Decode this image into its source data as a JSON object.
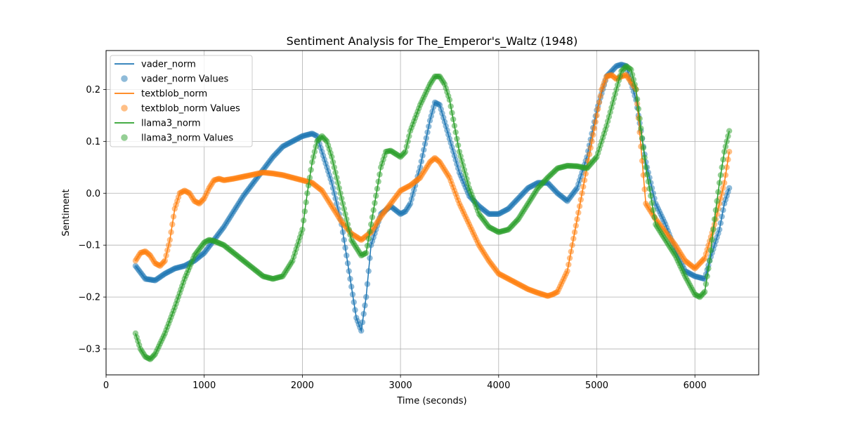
{
  "chart_data": {
    "type": "line",
    "title": "Sentiment Analysis for The_Emperor's_Waltz (1948)",
    "xlabel": "Time (seconds)",
    "ylabel": "Sentiment",
    "xlim": [
      0,
      6650
    ],
    "ylim": [
      -0.35,
      0.275
    ],
    "xticks": [
      0,
      1000,
      2000,
      3000,
      4000,
      5000,
      6000
    ],
    "yticks": [
      -0.3,
      -0.2,
      -0.1,
      0.0,
      0.1,
      0.2
    ],
    "xtick_labels": [
      "0",
      "1000",
      "2000",
      "3000",
      "4000",
      "5000",
      "6000"
    ],
    "ytick_labels": [
      "−0.3",
      "−0.2",
      "−0.1",
      "0.0",
      "0.1",
      "0.2"
    ],
    "grid": true,
    "legend_position": "upper-left",
    "legend": [
      "vader_norm",
      "vader_norm Values",
      "textblob_norm",
      "textblob_norm Values",
      "llama3_norm",
      "llama3_norm Values"
    ],
    "series": [
      {
        "name": "vader_norm",
        "color": "#1f77b4",
        "x": [
          300,
          400,
          500,
          600,
          700,
          800,
          900,
          1000,
          1100,
          1200,
          1300,
          1400,
          1500,
          1600,
          1700,
          1800,
          1900,
          2000,
          2100,
          2150,
          2200,
          2300,
          2400,
          2500,
          2550,
          2600,
          2650,
          2700,
          2800,
          2900,
          3000,
          3050,
          3100,
          3200,
          3300,
          3350,
          3400,
          3500,
          3600,
          3700,
          3800,
          3900,
          4000,
          4100,
          4200,
          4300,
          4400,
          4500,
          4600,
          4700,
          4800,
          4900,
          5000,
          5100,
          5200,
          5250,
          5300,
          5400,
          5500,
          5600,
          5700,
          5800,
          5900,
          6000,
          6100,
          6150,
          6200,
          6250,
          6300,
          6350
        ],
        "y": [
          -0.14,
          -0.165,
          -0.168,
          -0.155,
          -0.145,
          -0.14,
          -0.13,
          -0.115,
          -0.09,
          -0.065,
          -0.035,
          -0.005,
          0.02,
          0.045,
          0.07,
          0.09,
          0.1,
          0.11,
          0.115,
          0.11,
          0.08,
          0.02,
          -0.06,
          -0.18,
          -0.24,
          -0.265,
          -0.2,
          -0.1,
          -0.04,
          -0.025,
          -0.04,
          -0.035,
          -0.02,
          0.05,
          0.14,
          0.175,
          0.17,
          0.105,
          0.04,
          -0.005,
          -0.025,
          -0.04,
          -0.04,
          -0.03,
          -0.01,
          0.01,
          0.02,
          0.02,
          0.0,
          -0.015,
          0.01,
          0.07,
          0.16,
          0.225,
          0.245,
          0.248,
          0.245,
          0.18,
          0.06,
          -0.02,
          -0.06,
          -0.11,
          -0.15,
          -0.16,
          -0.165,
          -0.13,
          -0.1,
          -0.07,
          -0.02,
          0.01
        ]
      },
      {
        "name": "textblob_norm",
        "color": "#ff7f0e",
        "x": [
          300,
          350,
          400,
          450,
          500,
          550,
          600,
          650,
          700,
          750,
          800,
          850,
          900,
          950,
          1000,
          1050,
          1100,
          1150,
          1200,
          1300,
          1400,
          1500,
          1600,
          1700,
          1800,
          1900,
          2000,
          2100,
          2200,
          2300,
          2400,
          2500,
          2600,
          2700,
          2800,
          2900,
          3000,
          3100,
          3200,
          3300,
          3350,
          3400,
          3500,
          3600,
          3700,
          3800,
          3900,
          4000,
          4100,
          4200,
          4300,
          4400,
          4500,
          4550,
          4600,
          4700,
          4800,
          4900,
          5000,
          5050,
          5100,
          5150,
          5200,
          5250,
          5300,
          5400,
          5500,
          5600,
          5700,
          5800,
          5900,
          6000,
          6100,
          6200,
          6300,
          6350
        ],
        "y": [
          -0.13,
          -0.115,
          -0.112,
          -0.12,
          -0.135,
          -0.14,
          -0.13,
          -0.09,
          -0.03,
          0.0,
          0.005,
          0.0,
          -0.015,
          -0.02,
          -0.01,
          0.01,
          0.025,
          0.028,
          0.025,
          0.028,
          0.032,
          0.036,
          0.04,
          0.038,
          0.035,
          0.03,
          0.025,
          0.02,
          0.005,
          -0.025,
          -0.055,
          -0.078,
          -0.09,
          -0.075,
          -0.045,
          -0.02,
          0.005,
          0.015,
          0.03,
          0.06,
          0.068,
          0.06,
          0.03,
          -0.02,
          -0.06,
          -0.1,
          -0.13,
          -0.155,
          -0.165,
          -0.175,
          -0.185,
          -0.192,
          -0.198,
          -0.195,
          -0.19,
          -0.15,
          -0.05,
          0.05,
          0.15,
          0.2,
          0.225,
          0.228,
          0.22,
          0.225,
          0.228,
          0.2,
          -0.02,
          -0.05,
          -0.075,
          -0.1,
          -0.13,
          -0.145,
          -0.125,
          -0.06,
          0.02,
          0.08
        ]
      },
      {
        "name": "llama3_norm",
        "color": "#2ca02c",
        "x": [
          300,
          350,
          400,
          450,
          500,
          550,
          600,
          700,
          800,
          900,
          1000,
          1050,
          1100,
          1200,
          1300,
          1400,
          1500,
          1600,
          1700,
          1800,
          1900,
          2000,
          2050,
          2100,
          2150,
          2200,
          2250,
          2300,
          2400,
          2500,
          2600,
          2650,
          2700,
          2800,
          2850,
          2900,
          3000,
          3050,
          3100,
          3200,
          3300,
          3350,
          3400,
          3450,
          3500,
          3600,
          3700,
          3800,
          3900,
          4000,
          4100,
          4200,
          4300,
          4400,
          4500,
          4600,
          4700,
          4800,
          4900,
          5000,
          5100,
          5200,
          5250,
          5300,
          5350,
          5400,
          5500,
          5600,
          5700,
          5800,
          5900,
          6000,
          6050,
          6100,
          6150,
          6200,
          6250,
          6300,
          6350
        ],
        "y": [
          -0.27,
          -0.3,
          -0.315,
          -0.32,
          -0.31,
          -0.29,
          -0.27,
          -0.22,
          -0.165,
          -0.12,
          -0.095,
          -0.09,
          -0.092,
          -0.1,
          -0.115,
          -0.13,
          -0.145,
          -0.16,
          -0.165,
          -0.16,
          -0.13,
          -0.07,
          0.0,
          0.06,
          0.1,
          0.11,
          0.1,
          0.07,
          -0.01,
          -0.09,
          -0.12,
          -0.115,
          -0.06,
          0.05,
          0.08,
          0.082,
          0.07,
          0.08,
          0.12,
          0.17,
          0.21,
          0.225,
          0.225,
          0.21,
          0.18,
          0.08,
          0.01,
          -0.04,
          -0.065,
          -0.075,
          -0.07,
          -0.05,
          -0.02,
          0.01,
          0.03,
          0.048,
          0.053,
          0.052,
          0.048,
          0.07,
          0.13,
          0.2,
          0.235,
          0.245,
          0.238,
          0.2,
          0.05,
          -0.06,
          -0.09,
          -0.12,
          -0.16,
          -0.195,
          -0.2,
          -0.19,
          -0.13,
          -0.05,
          0.02,
          0.08,
          0.12
        ]
      }
    ]
  }
}
